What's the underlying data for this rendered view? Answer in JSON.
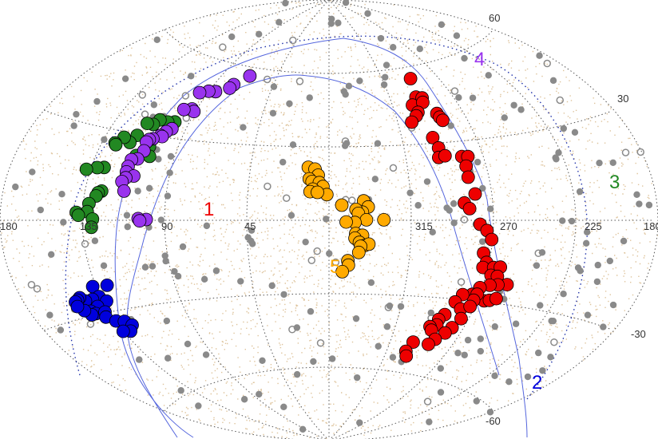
{
  "chart_data": {
    "type": "scatter",
    "projection": "aitoff",
    "title": "",
    "xlabel": "",
    "ylabel": "",
    "grid": true,
    "legend": "none",
    "x_tick_labels": [
      "180",
      "135",
      "90",
      "45",
      "315",
      "270",
      "225",
      "180"
    ],
    "y_tick_labels": [
      "60",
      "30",
      "-30",
      "-60"
    ],
    "colors": {
      "background_points": "#d8b98a",
      "grey_points": "#8a8a8a",
      "contour": "#5566dd",
      "dotted_line": "#2233aa",
      "group_1": "#ee0000",
      "group_2": "#0000dd",
      "group_3": "#228822",
      "group_4": "#9933ee",
      "group_5": "#ffaa00"
    },
    "series": [
      {
        "label": "1",
        "color": "#ee0000",
        "points": [
          [
            68.2,
            55.5
          ],
          [
            64.1,
            48.3
          ],
          [
            68.1,
            47.7
          ],
          [
            58.9,
            45.4
          ],
          [
            66.9,
            46.0
          ],
          [
            60.5,
            42.4
          ],
          [
            58.4,
            41.1
          ],
          [
            54.0,
            38.8
          ],
          [
            72.6,
            41.2
          ],
          [
            73.3,
            39.7
          ],
          [
            74.3,
            38.4
          ],
          [
            63.9,
            32.2
          ],
          [
            65.5,
            28.1
          ],
          [
            64.1,
            24.4
          ],
          [
            68.0,
            24.9
          ],
          [
            77.6,
            24.2
          ],
          [
            81.1,
            24.0
          ],
          [
            78.6,
            20.5
          ],
          [
            78.4,
            16.3
          ],
          [
            80.8,
            9.9
          ],
          [
            74.4,
            6.6
          ],
          [
            77.1,
            4.4
          ],
          [
            82.7,
            -1.5
          ],
          [
            86.6,
            -3.8
          ],
          [
            89.5,
            -7.1
          ],
          [
            86.0,
            -12.2
          ],
          [
            88.6,
            -15.6
          ],
          [
            87.2,
            -17.5
          ],
          [
            93.2,
            -17.3
          ],
          [
            96.9,
            -17.0
          ],
          [
            92.9,
            -20.2
          ],
          [
            96.7,
            -20.4
          ],
          [
            103.7,
            -23.0
          ],
          [
            98.5,
            -23.4
          ],
          [
            94.0,
            -23.8
          ],
          [
            88.8,
            -25.0
          ],
          [
            94.2,
            -29.6
          ],
          [
            97.2,
            -29.2
          ],
          [
            100.7,
            -28.3
          ],
          [
            85.6,
            -27.7
          ],
          [
            88.5,
            -27.5
          ],
          [
            87.8,
            -29.8
          ],
          [
            80.1,
            -28.1
          ],
          [
            77.2,
            -31.1
          ],
          [
            82.3,
            -33.5
          ],
          [
            87.3,
            -32.2
          ],
          [
            85.3,
            -37.0
          ],
          [
            74.0,
            -36.2
          ],
          [
            71.5,
            -38.3
          ],
          [
            71.9,
            -40.4
          ],
          [
            82.6,
            -40.7
          ],
          [
            68.0,
            -41.3
          ],
          [
            70.0,
            -42.6
          ],
          [
            80.0,
            -43.0
          ],
          [
            75.8,
            -45.8
          ],
          [
            73.1,
            -48.0
          ],
          [
            61.6,
            -47.9
          ],
          [
            59.7,
            -51.7
          ],
          [
            62.0,
            -53.5
          ]
        ]
      },
      {
        "label": "2",
        "color": "#0000dd",
        "points": [
          [
            231.3,
            -21.5
          ],
          [
            222.9,
            -21.3
          ],
          [
            223.7,
            -24.7
          ],
          [
            219.2,
            -25.2
          ],
          [
            214.7,
            -25.3
          ],
          [
            212.5,
            -24.0
          ],
          [
            210.6,
            -24.6
          ],
          [
            208.8,
            -25.0
          ],
          [
            226.7,
            -26.5
          ],
          [
            219.8,
            -27.6
          ],
          [
            214.2,
            -28.6
          ],
          [
            216.3,
            -29.6
          ],
          [
            222.1,
            -29.7
          ],
          [
            213.5,
            -29.7
          ],
          [
            210.9,
            -28.0
          ],
          [
            208.4,
            -26.4
          ],
          [
            220.7,
            -31.3
          ],
          [
            225.0,
            -33.1
          ],
          [
            229.7,
            -33.8
          ],
          [
            232.7,
            -35.5
          ],
          [
            229.1,
            -37.2
          ],
          [
            224.6,
            -36.7
          ]
        ]
      },
      {
        "label": "3",
        "color": "#228822",
        "points": [
          [
            261.1,
            35.9
          ],
          [
            256.8,
            35.5
          ],
          [
            251.2,
            35.8
          ],
          [
            248.9,
            33.9
          ],
          [
            244.9,
            33.9
          ],
          [
            243.1,
            29.4
          ],
          [
            240.9,
            26.7
          ],
          [
            236.1,
            28.1
          ],
          [
            232.6,
            25.8
          ],
          [
            233.5,
            25.3
          ],
          [
            253.3,
            26.2
          ],
          [
            255.6,
            22.8
          ],
          [
            247.8,
            22.6
          ],
          [
            232.2,
            17.5
          ],
          [
            228.4,
            17.2
          ],
          [
            222.7,
            16.3
          ],
          [
            234.2,
            9.7
          ],
          [
            232.4,
            9.1
          ],
          [
            231.6,
            8.0
          ],
          [
            228.2,
            5.4
          ],
          [
            227.6,
            2.8
          ],
          [
            221.6,
            2.5
          ],
          [
            222.8,
            1.6
          ],
          [
            230.6,
            0.4
          ],
          [
            229.9,
            -2.3
          ]
        ]
      },
      {
        "label": "4",
        "color": "#9933ee",
        "points": [
          [
            292.3,
            56.6
          ],
          [
            284.4,
            52.5
          ],
          [
            283.2,
            51.0
          ],
          [
            274.8,
            48.9
          ],
          [
            269.9,
            48.6
          ],
          [
            264.4,
            47.5
          ],
          [
            266.9,
            41.4
          ],
          [
            269.1,
            40.6
          ],
          [
            262.0,
            40.7
          ],
          [
            261.5,
            33.4
          ],
          [
            259.0,
            32.1
          ],
          [
            256.8,
            30.5
          ],
          [
            258.0,
            30.2
          ],
          [
            253.2,
            29.0
          ],
          [
            251.3,
            28.6
          ],
          [
            250.4,
            27.6
          ],
          [
            251.2,
            24.5
          ],
          [
            249.3,
            21.5
          ],
          [
            246.0,
            21.0
          ],
          [
            245.4,
            18.6
          ],
          [
            245.4,
            16.7
          ],
          [
            250.1,
            15.5
          ],
          [
            245.9,
            14.7
          ],
          [
            244.3,
            13.3
          ],
          [
            246.5,
            10.1
          ],
          [
            260.0,
            0.3
          ],
          [
            255.6,
            0.6
          ],
          [
            256.4,
            -0.2
          ]
        ]
      },
      {
        "label": "5",
        "color": "#ffaa00",
        "points": [
          [
            348.1,
            21.6
          ],
          [
            352.0,
            20.9
          ],
          [
            353.9,
            18.4
          ],
          [
            348.9,
            16.9
          ],
          [
            350.5,
            15.8
          ],
          [
            354.6,
            15.4
          ],
          [
            356.6,
            13.8
          ],
          [
            351.0,
            12.7
          ],
          [
            349.5,
            11.7
          ],
          [
            358.8,
            10.5
          ],
          [
            353.6,
            11.4
          ],
          [
            7.0,
            6.2
          ],
          [
            19.1,
            7.9
          ],
          [
            21.5,
            5.4
          ],
          [
            18.3,
            3.3
          ],
          [
            14.8,
            4.4
          ],
          [
            16.1,
            2.8
          ],
          [
            20.5,
            0.2
          ],
          [
            30.0,
            0.2
          ],
          [
            14.2,
            -0.9
          ],
          [
            9.4,
            -0.7
          ],
          [
            14.7,
            -5.4
          ],
          [
            18.4,
            -6.1
          ],
          [
            14.3,
            -7.3
          ],
          [
            16.8,
            -9.0
          ],
          [
            19.7,
            -10.3
          ],
          [
            22.0,
            -9.7
          ],
          [
            17.5,
            -10.6
          ],
          [
            16.6,
            -13.1
          ],
          [
            10.6,
            -16.5
          ],
          [
            11.0,
            -18.3
          ],
          [
            7.6,
            -21.0
          ]
        ]
      }
    ]
  },
  "group_labels": {
    "g1": "1",
    "g2": "2",
    "g3": "3",
    "g4": "4",
    "g5": "5"
  }
}
